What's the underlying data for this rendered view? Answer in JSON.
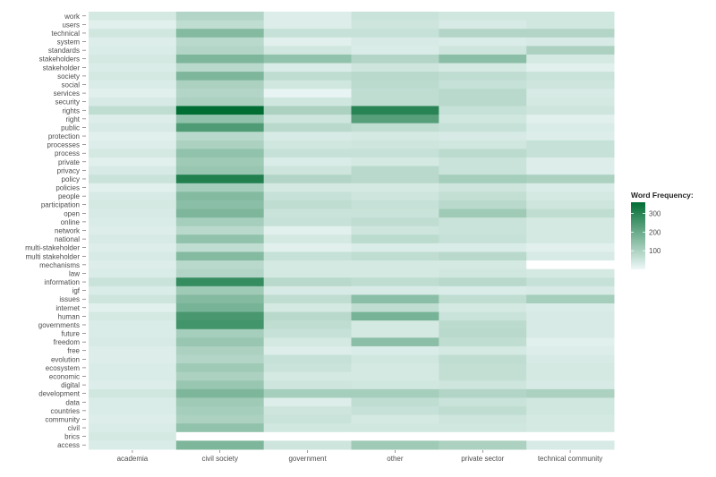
{
  "chart_data": {
    "type": "heatmap",
    "x_categories": [
      "academia",
      "civil society",
      "government",
      "other",
      "private sector",
      "technical community"
    ],
    "y_categories": [
      "work",
      "users",
      "technical",
      "system",
      "standards",
      "stakeholders",
      "stakeholder",
      "society",
      "social",
      "services",
      "security",
      "rights",
      "right",
      "public",
      "protection",
      "processes",
      "process",
      "private",
      "privacy",
      "policy",
      "policies",
      "people",
      "participation",
      "open",
      "online",
      "network",
      "national",
      "multi-stakeholder",
      "multi stakeholder",
      "mechanisms",
      "law",
      "information",
      "igf",
      "issues",
      "internet",
      "human",
      "governments",
      "future",
      "freedom",
      "free",
      "evolution",
      "ecosystem",
      "economic",
      "digital",
      "development",
      "data",
      "countries",
      "community",
      "civil",
      "brics",
      "access"
    ],
    "values": [
      [
        40,
        90,
        25,
        55,
        45,
        45
      ],
      [
        20,
        70,
        25,
        50,
        35,
        45
      ],
      [
        45,
        160,
        60,
        60,
        90,
        90
      ],
      [
        25,
        80,
        20,
        35,
        30,
        35
      ],
      [
        30,
        90,
        45,
        30,
        50,
        100
      ],
      [
        40,
        170,
        140,
        90,
        150,
        40
      ],
      [
        30,
        80,
        30,
        50,
        40,
        20
      ],
      [
        40,
        170,
        70,
        80,
        70,
        55
      ],
      [
        30,
        100,
        45,
        75,
        60,
        50
      ],
      [
        20,
        90,
        10,
        70,
        80,
        35
      ],
      [
        35,
        100,
        45,
        70,
        80,
        40
      ],
      [
        70,
        360,
        100,
        300,
        60,
        50
      ],
      [
        25,
        140,
        50,
        230,
        45,
        20
      ],
      [
        35,
        240,
        80,
        70,
        60,
        30
      ],
      [
        20,
        80,
        35,
        40,
        35,
        25
      ],
      [
        25,
        100,
        45,
        50,
        45,
        60
      ],
      [
        40,
        140,
        60,
        60,
        75,
        60
      ],
      [
        20,
        120,
        30,
        40,
        55,
        25
      ],
      [
        35,
        130,
        50,
        80,
        55,
        25
      ],
      [
        55,
        310,
        90,
        80,
        110,
        100
      ],
      [
        20,
        110,
        40,
        40,
        50,
        30
      ],
      [
        35,
        160,
        60,
        50,
        65,
        40
      ],
      [
        40,
        150,
        70,
        60,
        80,
        50
      ],
      [
        35,
        170,
        55,
        55,
        120,
        70
      ],
      [
        30,
        110,
        60,
        70,
        55,
        40
      ],
      [
        25,
        80,
        20,
        50,
        55,
        40
      ],
      [
        35,
        140,
        40,
        75,
        60,
        40
      ],
      [
        25,
        70,
        20,
        30,
        30,
        20
      ],
      [
        35,
        160,
        60,
        70,
        80,
        35
      ],
      [
        25,
        80,
        40,
        40,
        40,
        0
      ],
      [
        30,
        90,
        40,
        40,
        45,
        40
      ],
      [
        55,
        280,
        80,
        70,
        80,
        60
      ],
      [
        30,
        120,
        35,
        35,
        30,
        35
      ],
      [
        50,
        160,
        70,
        150,
        70,
        110
      ],
      [
        20,
        180,
        40,
        70,
        40,
        30
      ],
      [
        40,
        250,
        80,
        180,
        55,
        35
      ],
      [
        30,
        260,
        70,
        40,
        75,
        35
      ],
      [
        30,
        110,
        60,
        40,
        80,
        35
      ],
      [
        35,
        130,
        40,
        150,
        70,
        20
      ],
      [
        25,
        100,
        25,
        30,
        40,
        25
      ],
      [
        25,
        90,
        60,
        45,
        70,
        35
      ],
      [
        30,
        120,
        55,
        40,
        65,
        40
      ],
      [
        30,
        100,
        40,
        40,
        65,
        40
      ],
      [
        25,
        130,
        50,
        45,
        50,
        35
      ],
      [
        45,
        170,
        110,
        110,
        90,
        100
      ],
      [
        30,
        120,
        25,
        70,
        55,
        45
      ],
      [
        30,
        110,
        50,
        60,
        70,
        45
      ],
      [
        25,
        100,
        55,
        40,
        50,
        40
      ],
      [
        30,
        140,
        45,
        45,
        45,
        40
      ],
      [
        40,
        0,
        0,
        0,
        0,
        0
      ],
      [
        30,
        170,
        50,
        120,
        100,
        35
      ]
    ],
    "legend": {
      "title": "Word Frequency:",
      "ticks": [
        100,
        200,
        300
      ],
      "range": [
        0,
        360
      ],
      "colors": {
        "low": "#eef8f8",
        "high": "#006d33"
      }
    }
  }
}
